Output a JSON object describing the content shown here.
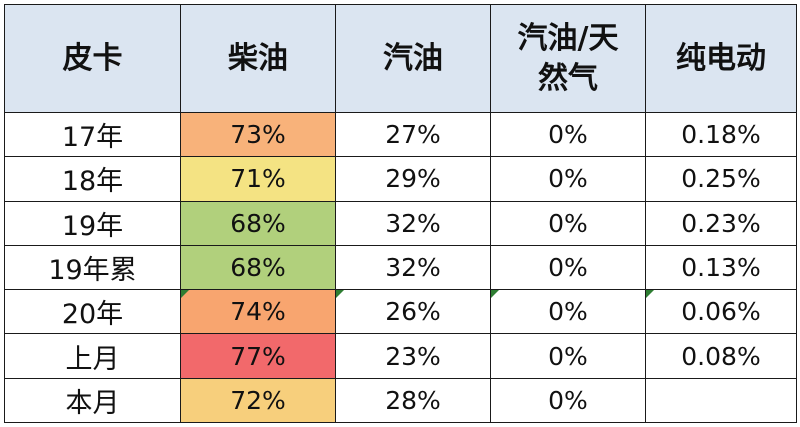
{
  "table": {
    "headers": [
      "皮卡",
      "柴油",
      "汽油",
      "汽油/天然气",
      "纯电动"
    ],
    "header_lines": {
      "gas_natural": [
        "汽油/天",
        "然气"
      ]
    },
    "rows": [
      {
        "label": "17年",
        "diesel": "73%",
        "gasoline": "27%",
        "gas_natural": "0%",
        "electric": "0.18%",
        "diesel_color": "#f8b27a"
      },
      {
        "label": "18年",
        "diesel": "71%",
        "gasoline": "29%",
        "gas_natural": "0%",
        "electric": "0.25%",
        "diesel_color": "#f4e383"
      },
      {
        "label": "19年",
        "diesel": "68%",
        "gasoline": "32%",
        "gas_natural": "0%",
        "electric": "0.23%",
        "diesel_color": "#b1d07c"
      },
      {
        "label": "19年累",
        "diesel": "68%",
        "gasoline": "32%",
        "gas_natural": "0%",
        "electric": "0.13%",
        "diesel_color": "#b1d07c"
      },
      {
        "label": "20年",
        "diesel": "74%",
        "gasoline": "26%",
        "gas_natural": "0%",
        "electric": "0.06%",
        "diesel_color": "#f8a56f"
      },
      {
        "label": "上月",
        "diesel": "77%",
        "gasoline": "23%",
        "gas_natural": "0%",
        "electric": "0.08%",
        "diesel_color": "#f2696b"
      },
      {
        "label": "本月",
        "diesel": "72%",
        "gasoline": "28%",
        "gas_natural": "0%",
        "electric": "",
        "diesel_color": "#f7cf7c"
      }
    ]
  },
  "colors": {
    "header_bg": "#dbe5f1",
    "border": "#1a1a1a",
    "error_marker": "#2e7d32"
  }
}
